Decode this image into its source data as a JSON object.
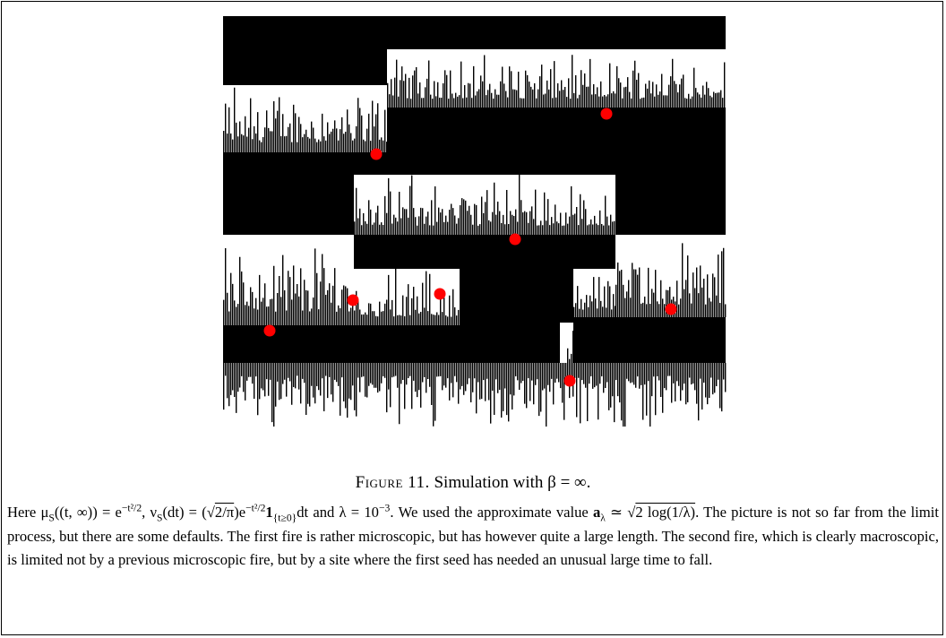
{
  "caption": {
    "label": "Figure 11.",
    "text": "Simulation with β = ∞."
  },
  "body": [
    "Here μ",
    "S",
    "((t, ∞)) = e",
    "−t²/2",
    ", ν",
    "S",
    "(dt) = (√",
    "2/π",
    ")e",
    "−t²/2",
    "1",
    "{t≥0}",
    "dt and λ = 10",
    "−3",
    ". We used the approximate value ",
    "a",
    "λ",
    " ≃ √",
    "2 log(1/λ)",
    ". The picture is not so far from the limit process, but there are some defaults. The first fire is rather microscopic, but has however quite a large length. The second fire, which is clearly macroscopic, is limited not by a previous microscopic fire, but by a site where the first seed has needed an unusual large time to fall."
  ]
}
